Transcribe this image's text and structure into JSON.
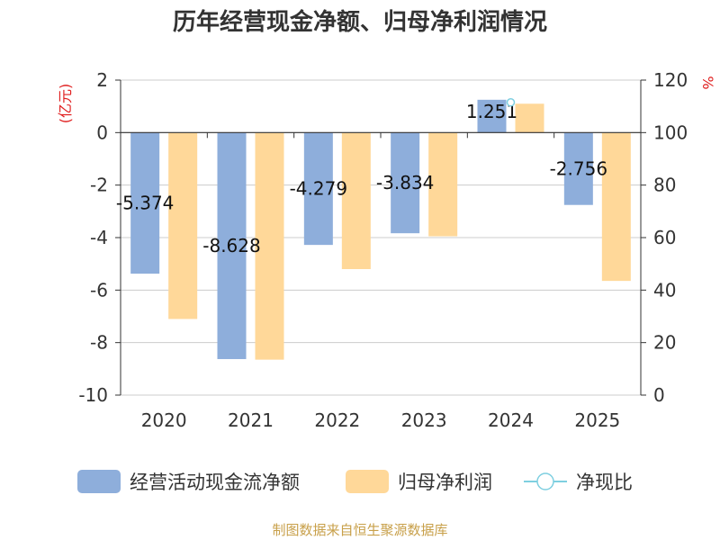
{
  "title": "历年经营现金净额、归母净利润情况",
  "footer": "制图数据来自恒生聚源数据库",
  "chart_data": {
    "type": "bar",
    "categories": [
      "2020",
      "2021",
      "2022",
      "2023",
      "2024",
      "2025"
    ],
    "series": [
      {
        "name": "经营活动现金流净额",
        "type": "bar",
        "axis": "left",
        "color": "#8eaedb",
        "values": [
          -5.374,
          -8.628,
          -4.279,
          -3.834,
          1.251,
          -2.756
        ],
        "labels": [
          "-5.374",
          "-8.628",
          "-4.279",
          "-3.834",
          "1.251",
          "-2.756"
        ]
      },
      {
        "name": "归母净利润",
        "type": "bar",
        "axis": "left",
        "color": "#ffd899",
        "values": [
          -7.1,
          -8.65,
          -5.2,
          -3.95,
          1.1,
          -5.65
        ]
      },
      {
        "name": "净现比",
        "type": "line",
        "axis": "right",
        "color": "#7ecfe0",
        "values": [
          null,
          null,
          null,
          null,
          111.5,
          null
        ]
      }
    ],
    "y_left": {
      "label": "(亿元)",
      "min": -10,
      "max": 2,
      "ticks": [
        2,
        0,
        -2,
        -4,
        -6,
        -8,
        -10
      ]
    },
    "y_right": {
      "label": "%",
      "min": 0,
      "max": 120,
      "ticks": [
        120,
        100,
        80,
        60,
        40,
        20,
        0
      ]
    },
    "grid": true,
    "legend": "bottom"
  }
}
